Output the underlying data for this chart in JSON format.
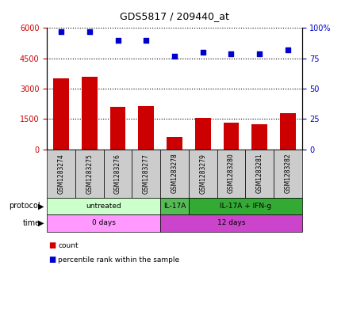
{
  "title": "GDS5817 / 209440_at",
  "samples": [
    "GSM1283274",
    "GSM1283275",
    "GSM1283276",
    "GSM1283277",
    "GSM1283278",
    "GSM1283279",
    "GSM1283280",
    "GSM1283281",
    "GSM1283282"
  ],
  "counts": [
    3500,
    3600,
    2100,
    2150,
    600,
    1550,
    1300,
    1250,
    1800
  ],
  "percentile_ranks": [
    97,
    97,
    90,
    90,
    77,
    80,
    79,
    79,
    82
  ],
  "ylim_left": [
    0,
    6000
  ],
  "ylim_right": [
    0,
    100
  ],
  "yticks_left": [
    0,
    1500,
    3000,
    4500,
    6000
  ],
  "yticks_right": [
    0,
    25,
    50,
    75,
    100
  ],
  "bar_color": "#cc0000",
  "dot_color": "#0000cc",
  "background_color": "#ffffff",
  "sample_box_color": "#cccccc",
  "protocol_groups": [
    {
      "label": "untreated",
      "start": 0,
      "end": 3,
      "color": "#ccffcc"
    },
    {
      "label": "IL-17A",
      "start": 4,
      "end": 4,
      "color": "#55bb55"
    },
    {
      "label": "IL-17A + IFN-g",
      "start": 5,
      "end": 8,
      "color": "#33aa33"
    }
  ],
  "time_groups": [
    {
      "label": "0 days",
      "start": 0,
      "end": 3,
      "color": "#ff99ff"
    },
    {
      "label": "12 days",
      "start": 4,
      "end": 8,
      "color": "#cc44cc"
    }
  ],
  "legend_count_color": "#cc0000",
  "legend_dot_color": "#0000cc"
}
